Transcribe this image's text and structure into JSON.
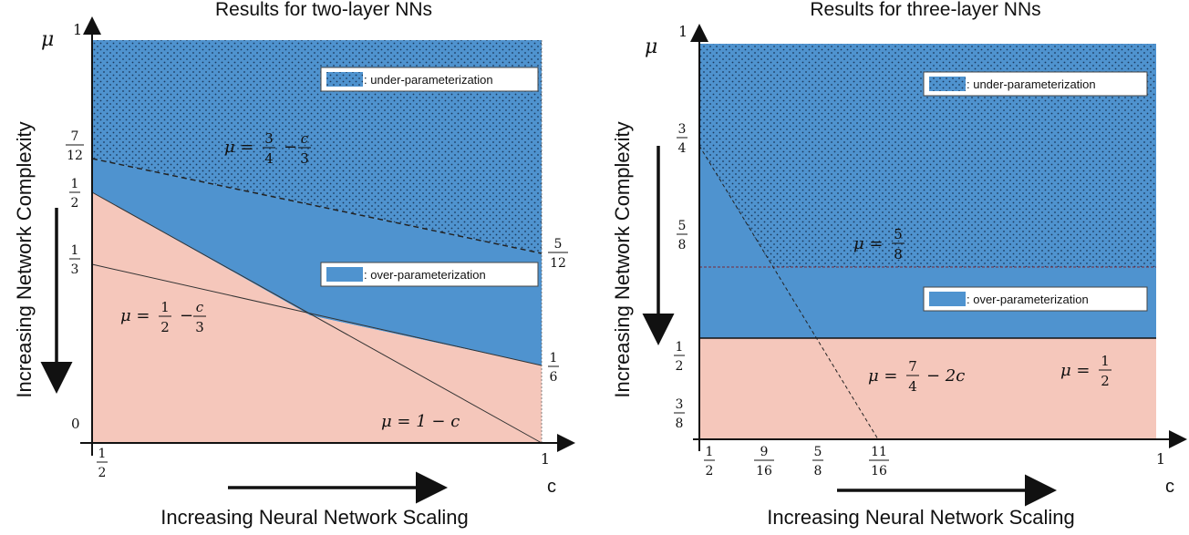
{
  "colors": {
    "under": "#4f93cf",
    "over": "#4f93cf",
    "regime_low": "#f5c7bb",
    "dots": "#1b3a5c",
    "line": "#222222"
  },
  "left": {
    "title": "Results for two-layer NNs",
    "y_symbol": "μ",
    "x_symbol": "c",
    "y_axis_label": "Increasing Network Complexity",
    "x_axis_label": "Increasing Neural Network Scaling",
    "y_tick_top": "1",
    "y_tick_zero": "0",
    "frac_7_12": {
      "num": "7",
      "den": "12"
    },
    "frac_1_2": {
      "num": "1",
      "den": "2"
    },
    "frac_1_3": {
      "num": "1",
      "den": "3"
    },
    "frac_5_12": {
      "num": "5",
      "den": "12"
    },
    "frac_1_6": {
      "num": "1",
      "den": "6"
    },
    "x_frac_1_2": {
      "num": "1",
      "den": "2"
    },
    "x_tick_1": "1",
    "legend_under": ": under-parameterization",
    "legend_over": ": over-parameterization",
    "eq1": {
      "lhs": "μ = ",
      "a_num": "3",
      "a_den": "4",
      "op": "−",
      "b_num": "c",
      "b_den": "3"
    },
    "eq2": {
      "lhs": "μ = ",
      "a_num": "1",
      "a_den": "2",
      "op": "−",
      "b_num": "c",
      "b_den": "3"
    },
    "eq3": "μ = 1 − c"
  },
  "right": {
    "title": "Results for three-layer NNs",
    "y_symbol": "μ",
    "x_symbol": "c",
    "y_axis_label": "Increasing Network Complexity",
    "x_axis_label": "Increasing Neural Network Scaling",
    "y_tick_top": "1",
    "frac_3_4": {
      "num": "3",
      "den": "4"
    },
    "frac_5_8": {
      "num": "5",
      "den": "8"
    },
    "frac_1_2": {
      "num": "1",
      "den": "2"
    },
    "frac_3_8": {
      "num": "3",
      "den": "8"
    },
    "x_frac_1_2": {
      "num": "1",
      "den": "2"
    },
    "x_frac_9_16": {
      "num": "9",
      "den": "16"
    },
    "x_frac_5_8": {
      "num": "5",
      "den": "8"
    },
    "x_frac_11_16": {
      "num": "11",
      "den": "16"
    },
    "x_tick_1": "1",
    "legend_under": ": under-parameterization",
    "legend_over": ": over-parameterization",
    "eq1": {
      "lhs": "μ = ",
      "a_num": "5",
      "a_den": "8"
    },
    "eq2": {
      "lhs": "μ = ",
      "a_num": "7",
      "a_den": "4",
      "op": "− 2c"
    },
    "eq3": {
      "lhs": "μ = ",
      "a_num": "1",
      "a_den": "2"
    }
  }
}
